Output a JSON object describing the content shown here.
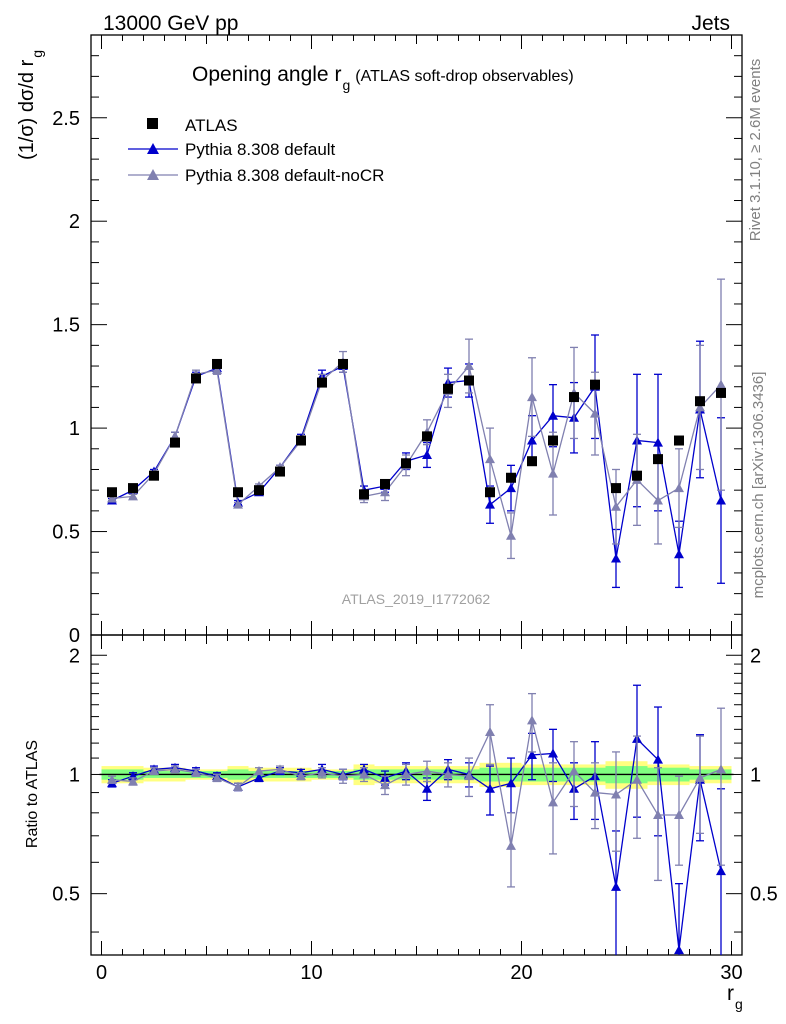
{
  "header": {
    "left": "13000 GeV pp",
    "right": "Jets"
  },
  "side_labels": {
    "rivet": "Rivet 3.1.10, ≥ 2.6M events",
    "mcplots": "mcplots.cern.ch [arXiv:1306.3436]"
  },
  "colors": {
    "atlas": "#000000",
    "pythia_default": "#0000cc",
    "pythia_nocr": "#8080b0",
    "band_outer": "#ffff80",
    "band_inner": "#80ff80",
    "ref_line": "#006400"
  },
  "chart_data": [
    {
      "type": "scatter",
      "title_main": "Opening angle r",
      "title_sub": "g",
      "title_suffix": "(ATLAS soft-drop observables)",
      "ylabel": "(1/σ) dσ/d r",
      "ylabel_sub": "g",
      "xlabel": "r",
      "xlabel_sub": "g",
      "watermark": "ATLAS_2019_I1772062",
      "xlim": [
        -0.5,
        30.5
      ],
      "ylim": [
        0,
        2.9
      ],
      "yticks": [
        0,
        0.5,
        1,
        1.5,
        2,
        2.5
      ],
      "ytick_labels": [
        "0",
        "0.5",
        "1",
        "1.5",
        "2",
        "2.5"
      ],
      "x": [
        0.5,
        1.5,
        2.5,
        3.5,
        4.5,
        5.5,
        6.5,
        7.5,
        8.5,
        9.5,
        10.5,
        11.5,
        12.5,
        13.5,
        14.5,
        15.5,
        16.5,
        17.5,
        18.5,
        19.5,
        20.5,
        21.5,
        22.5,
        23.5,
        24.5,
        25.5,
        26.5,
        27.5,
        28.5,
        29.5
      ],
      "legend": [
        "ATLAS",
        "Pythia 8.308 default",
        "Pythia 8.308 default-noCR"
      ],
      "series": [
        {
          "name": "ATLAS",
          "marker": "square",
          "values": [
            0.69,
            0.71,
            0.77,
            0.93,
            1.24,
            1.31,
            0.69,
            0.7,
            0.79,
            0.94,
            1.22,
            1.31,
            0.68,
            0.73,
            0.83,
            0.96,
            1.19,
            1.23,
            0.69,
            0.76,
            0.84,
            0.94,
            1.15,
            1.21,
            0.71,
            0.77,
            0.85,
            0.94,
            1.13,
            1.17
          ]
        },
        {
          "name": "Pythia 8.308 default",
          "marker": "triangle",
          "values": [
            0.65,
            0.7,
            0.79,
            0.96,
            1.25,
            1.29,
            0.64,
            0.69,
            0.81,
            0.95,
            1.25,
            1.3,
            0.7,
            0.72,
            0.84,
            0.87,
            1.22,
            1.23,
            0.63,
            0.71,
            0.94,
            1.06,
            1.05,
            1.2,
            0.37,
            0.94,
            0.93,
            0.39,
            1.09,
            0.65
          ],
          "errors": [
            0.01,
            0.01,
            0.01,
            0.02,
            0.02,
            0.02,
            0.01,
            0.01,
            0.01,
            0.02,
            0.03,
            0.03,
            0.02,
            0.03,
            0.04,
            0.06,
            0.07,
            0.08,
            0.09,
            0.11,
            0.12,
            0.15,
            0.17,
            0.25,
            0.14,
            0.32,
            0.33,
            0.16,
            0.33,
            0.4
          ]
        },
        {
          "name": "Pythia 8.308 default-noCR",
          "marker": "triangle",
          "values": [
            0.66,
            0.67,
            0.78,
            0.96,
            1.26,
            1.28,
            0.63,
            0.72,
            0.81,
            0.94,
            1.23,
            1.32,
            0.67,
            0.69,
            0.82,
            0.98,
            1.18,
            1.3,
            0.85,
            0.48,
            1.15,
            0.78,
            1.17,
            1.07,
            0.62,
            0.75,
            0.65,
            0.71,
            1.1,
            1.21
          ],
          "errors": [
            0.01,
            0.01,
            0.01,
            0.02,
            0.02,
            0.02,
            0.01,
            0.01,
            0.01,
            0.02,
            0.03,
            0.05,
            0.03,
            0.04,
            0.05,
            0.06,
            0.08,
            0.13,
            0.15,
            0.11,
            0.19,
            0.2,
            0.22,
            0.2,
            0.18,
            0.22,
            0.21,
            0.19,
            0.3,
            0.51
          ]
        }
      ]
    },
    {
      "type": "scatter",
      "ylabel": "Ratio to ATLAS",
      "xlim": [
        -0.5,
        30.5
      ],
      "ylim": [
        0.35,
        2.25
      ],
      "scale": "log",
      "yticks": [
        0.5,
        1,
        2
      ],
      "ytick_labels": [
        "0.5",
        "1",
        "2"
      ],
      "xticks": [
        0,
        10,
        20,
        30
      ],
      "xtick_labels": [
        "0",
        "10",
        "20",
        "30"
      ],
      "band_outer": [
        0.05,
        0.05,
        0.04,
        0.04,
        0.03,
        0.03,
        0.05,
        0.04,
        0.04,
        0.04,
        0.03,
        0.03,
        0.06,
        0.05,
        0.05,
        0.05,
        0.05,
        0.05,
        0.07,
        0.07,
        0.06,
        0.06,
        0.06,
        0.06,
        0.08,
        0.08,
        0.06,
        0.06,
        0.05,
        0.05
      ],
      "band_inner": [
        0.03,
        0.03,
        0.02,
        0.02,
        0.02,
        0.02,
        0.03,
        0.02,
        0.02,
        0.02,
        0.02,
        0.02,
        0.03,
        0.03,
        0.03,
        0.03,
        0.03,
        0.03,
        0.04,
        0.04,
        0.04,
        0.04,
        0.04,
        0.04,
        0.05,
        0.05,
        0.04,
        0.04,
        0.03,
        0.03
      ],
      "series": [
        {
          "name": "Pythia 8.308 default",
          "values": [
            0.95,
            0.99,
            1.03,
            1.04,
            1.02,
            0.99,
            0.93,
            0.98,
            1.02,
            1.01,
            1.03,
            1.0,
            1.03,
            0.98,
            1.02,
            0.92,
            1.03,
            1.0,
            0.92,
            0.95,
            1.12,
            1.13,
            0.92,
            0.99,
            0.52,
            1.23,
            1.09,
            0.36,
            0.97,
            0.57
          ],
          "errors": [
            0.02,
            0.02,
            0.02,
            0.02,
            0.02,
            0.02,
            0.02,
            0.02,
            0.02,
            0.02,
            0.03,
            0.03,
            0.03,
            0.04,
            0.05,
            0.06,
            0.06,
            0.07,
            0.13,
            0.15,
            0.15,
            0.17,
            0.15,
            0.22,
            0.2,
            0.45,
            0.39,
            0.17,
            0.29,
            0.35
          ]
        },
        {
          "name": "Pythia 8.308 default-noCR",
          "values": [
            0.97,
            0.96,
            1.02,
            1.03,
            1.01,
            0.98,
            0.93,
            1.02,
            1.03,
            0.99,
            1.01,
            0.99,
            1.0,
            0.94,
            1.0,
            1.02,
            1.0,
            0.99,
            1.28,
            0.66,
            1.37,
            0.85,
            1.02,
            0.9,
            0.89,
            0.97,
            0.79,
            0.79,
            0.98,
            1.03
          ],
          "errors": [
            0.02,
            0.02,
            0.02,
            0.02,
            0.02,
            0.02,
            0.02,
            0.02,
            0.02,
            0.02,
            0.03,
            0.04,
            0.04,
            0.05,
            0.06,
            0.06,
            0.07,
            0.11,
            0.22,
            0.14,
            0.23,
            0.22,
            0.19,
            0.17,
            0.25,
            0.28,
            0.25,
            0.2,
            0.27,
            0.44
          ]
        }
      ]
    }
  ]
}
